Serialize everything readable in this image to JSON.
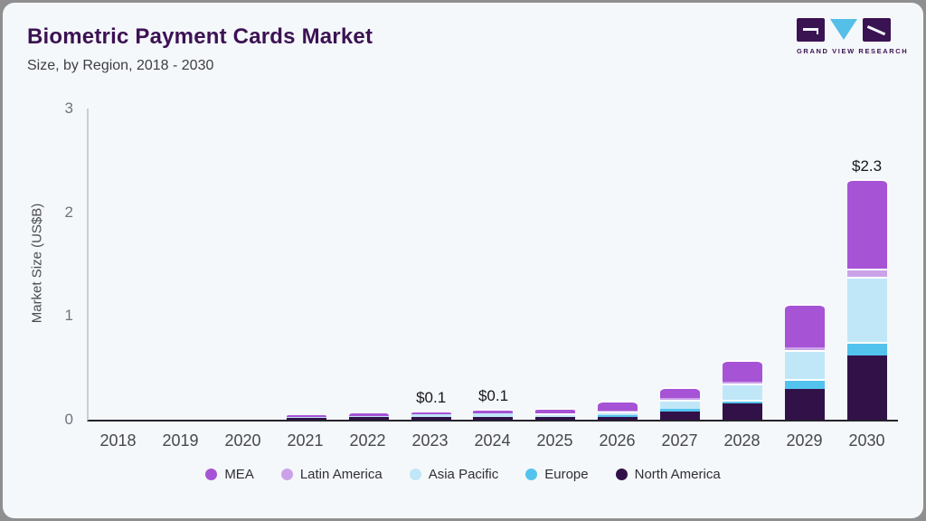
{
  "header": {
    "title": "Biometric Payment Cards Market",
    "subtitle": "Size, by Region, 2018 - 2030"
  },
  "logo": {
    "text": "GRAND VIEW RESEARCH",
    "purple": "#3a1353",
    "cyan": "#55bfe8"
  },
  "chart_data": {
    "type": "bar",
    "stacked": true,
    "title": "Biometric Payment Cards Market",
    "subtitle": "Size, by Region, 2018 - 2030",
    "xlabel": "",
    "ylabel": "Market Size (US$B)",
    "ylim": [
      0,
      3
    ],
    "yticks": [
      0,
      1,
      2,
      3
    ],
    "grid": false,
    "legend_position": "bottom",
    "categories": [
      "2018",
      "2019",
      "2020",
      "2021",
      "2022",
      "2023",
      "2024",
      "2025",
      "2026",
      "2027",
      "2028",
      "2029",
      "2030"
    ],
    "series": [
      {
        "name": "North America",
        "color": "#321149",
        "values": [
          0,
          0,
          0,
          0.018,
          0.024,
          0.03,
          0.03,
          0.03,
          0.03,
          0.075,
          0.16,
          0.3,
          0.62
        ]
      },
      {
        "name": "Europe",
        "color": "#53c3ee",
        "values": [
          0,
          0,
          0,
          0.002,
          0.002,
          0.003,
          0.004,
          0.005,
          0.012,
          0.027,
          0.035,
          0.09,
          0.13
        ]
      },
      {
        "name": "Asia Pacific",
        "color": "#c0e7f8",
        "values": [
          0,
          0,
          0,
          0.01,
          0.015,
          0.023,
          0.03,
          0.035,
          0.04,
          0.09,
          0.15,
          0.28,
          0.63
        ]
      },
      {
        "name": "Latin America",
        "color": "#cba2e8",
        "values": [
          0,
          0,
          0,
          0.002,
          0.002,
          0.003,
          0.004,
          0.005,
          0.008,
          0.015,
          0.02,
          0.03,
          0.08
        ]
      },
      {
        "name": "MEA",
        "color": "#a653d6",
        "values": [
          0,
          0,
          0,
          0.018,
          0.025,
          0.035,
          0.045,
          0.05,
          0.09,
          0.11,
          0.21,
          0.42,
          0.86
        ]
      }
    ],
    "annotations": [
      "",
      "",
      "",
      "",
      "",
      "$0.1",
      "$0.1",
      "",
      "",
      "",
      "",
      "",
      "$2.3"
    ],
    "legend": [
      "MEA",
      "Latin America",
      "Asia Pacific",
      "Europe",
      "North America"
    ]
  }
}
